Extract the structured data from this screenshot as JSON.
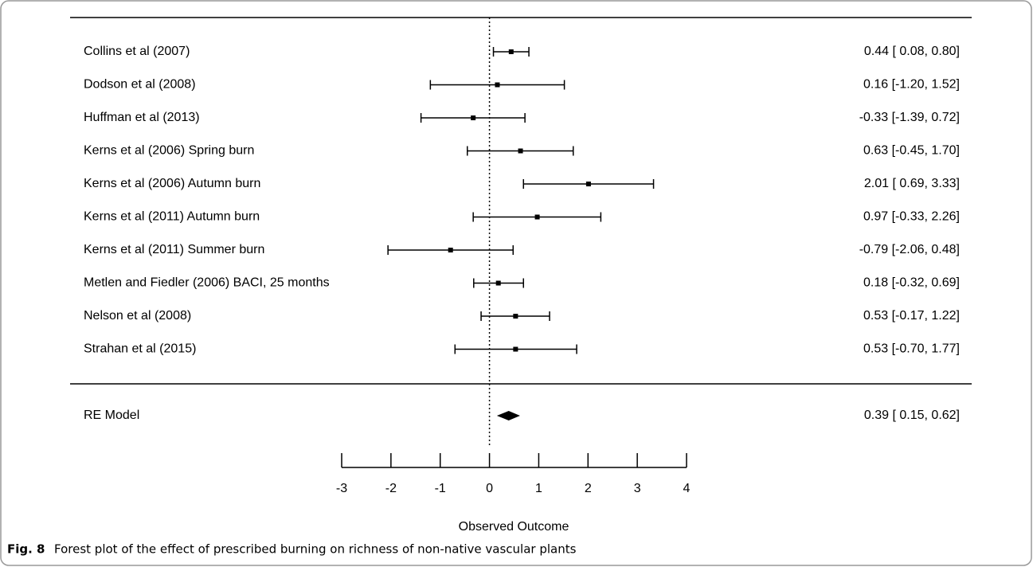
{
  "chart_data": {
    "type": "forest",
    "categories": [
      "Collins et al (2007)",
      "Dodson et al (2008)",
      "Huffman et al (2013)",
      "Kerns et al (2006) Spring burn",
      "Kerns et al (2006) Autumn burn",
      "Kerns et al (2011) Autumn burn",
      "Kerns et al (2011) Summer burn",
      "Metlen and Fiedler (2006) BACI, 25 months",
      "Nelson et al (2008)",
      "Strahan et al (2015)"
    ],
    "values": [
      0.44,
      0.16,
      -0.33,
      0.63,
      2.01,
      0.97,
      -0.79,
      0.18,
      0.53,
      0.53
    ],
    "lower": [
      0.08,
      -1.2,
      -1.39,
      -0.45,
      0.69,
      -0.33,
      -2.06,
      -0.32,
      -0.17,
      -0.7
    ],
    "upper": [
      0.8,
      1.52,
      0.72,
      1.7,
      3.33,
      2.26,
      0.48,
      0.69,
      1.22,
      1.77
    ],
    "value_labels": [
      "0.44 [ 0.08, 0.80]",
      "0.16 [-1.20, 1.52]",
      "-0.33 [-1.39, 0.72]",
      "0.63 [-0.45, 1.70]",
      "2.01 [ 0.69, 3.33]",
      "0.97 [-0.33, 2.26]",
      "-0.79 [-2.06, 0.48]",
      "0.18 [-0.32, 0.69]",
      "0.53 [-0.17, 1.22]",
      "0.53 [-0.70, 1.77]"
    ],
    "summary": {
      "label": "RE Model",
      "value": 0.39,
      "lower": 0.15,
      "upper": 0.62,
      "value_label": "0.39 [ 0.15, 0.62]"
    },
    "xlim": [
      -3,
      4
    ],
    "xticks": [
      -3,
      -2,
      -1,
      0,
      1,
      2,
      3,
      4
    ],
    "xlabel": "Observed Outcome",
    "ref_line": 0,
    "color": "#000000"
  },
  "caption": {
    "label": "Fig. 8",
    "text": "Forest plot of the effect of prescribed burning on richness of non-native vascular plants"
  }
}
